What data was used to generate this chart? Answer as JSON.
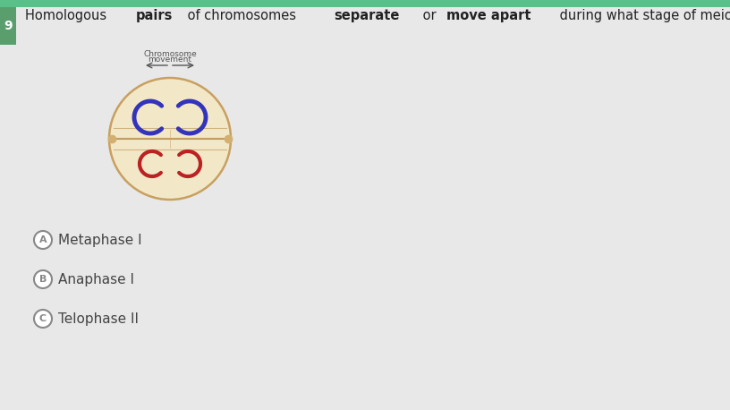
{
  "bg_color": "#e8e8e8",
  "top_bar_color": "#5bbf8a",
  "question_text_parts": [
    {
      "text": "Homologous ",
      "bold": false
    },
    {
      "text": "pairs",
      "bold": true
    },
    {
      "text": " of chromosomes ",
      "bold": false
    },
    {
      "text": "separate",
      "bold": true
    },
    {
      "text": " or ",
      "bold": false
    },
    {
      "text": "move apart",
      "bold": true
    },
    {
      "text": " during what stage of meiosis?",
      "bold": false
    }
  ],
  "label_text": "9",
  "label_bg": "#5b9e6e",
  "answers": [
    {
      "letter": "A",
      "text": "Metaphase I"
    },
    {
      "letter": "B",
      "text": "Anaphase I"
    },
    {
      "letter": "C",
      "text": "Telophase II"
    }
  ],
  "cell_color": "#f2e8c8",
  "cell_border": "#c8a060",
  "spindle_color": "#d4b070",
  "spindle_line_color": "#b89050",
  "chrom_blue": "#3333bb",
  "chrom_red": "#bb2222",
  "circle_border": "#888888",
  "answer_text_color": "#444444",
  "question_text_color": "#222222",
  "arrow_color": "#555555",
  "chrom_label_color": "#555555"
}
